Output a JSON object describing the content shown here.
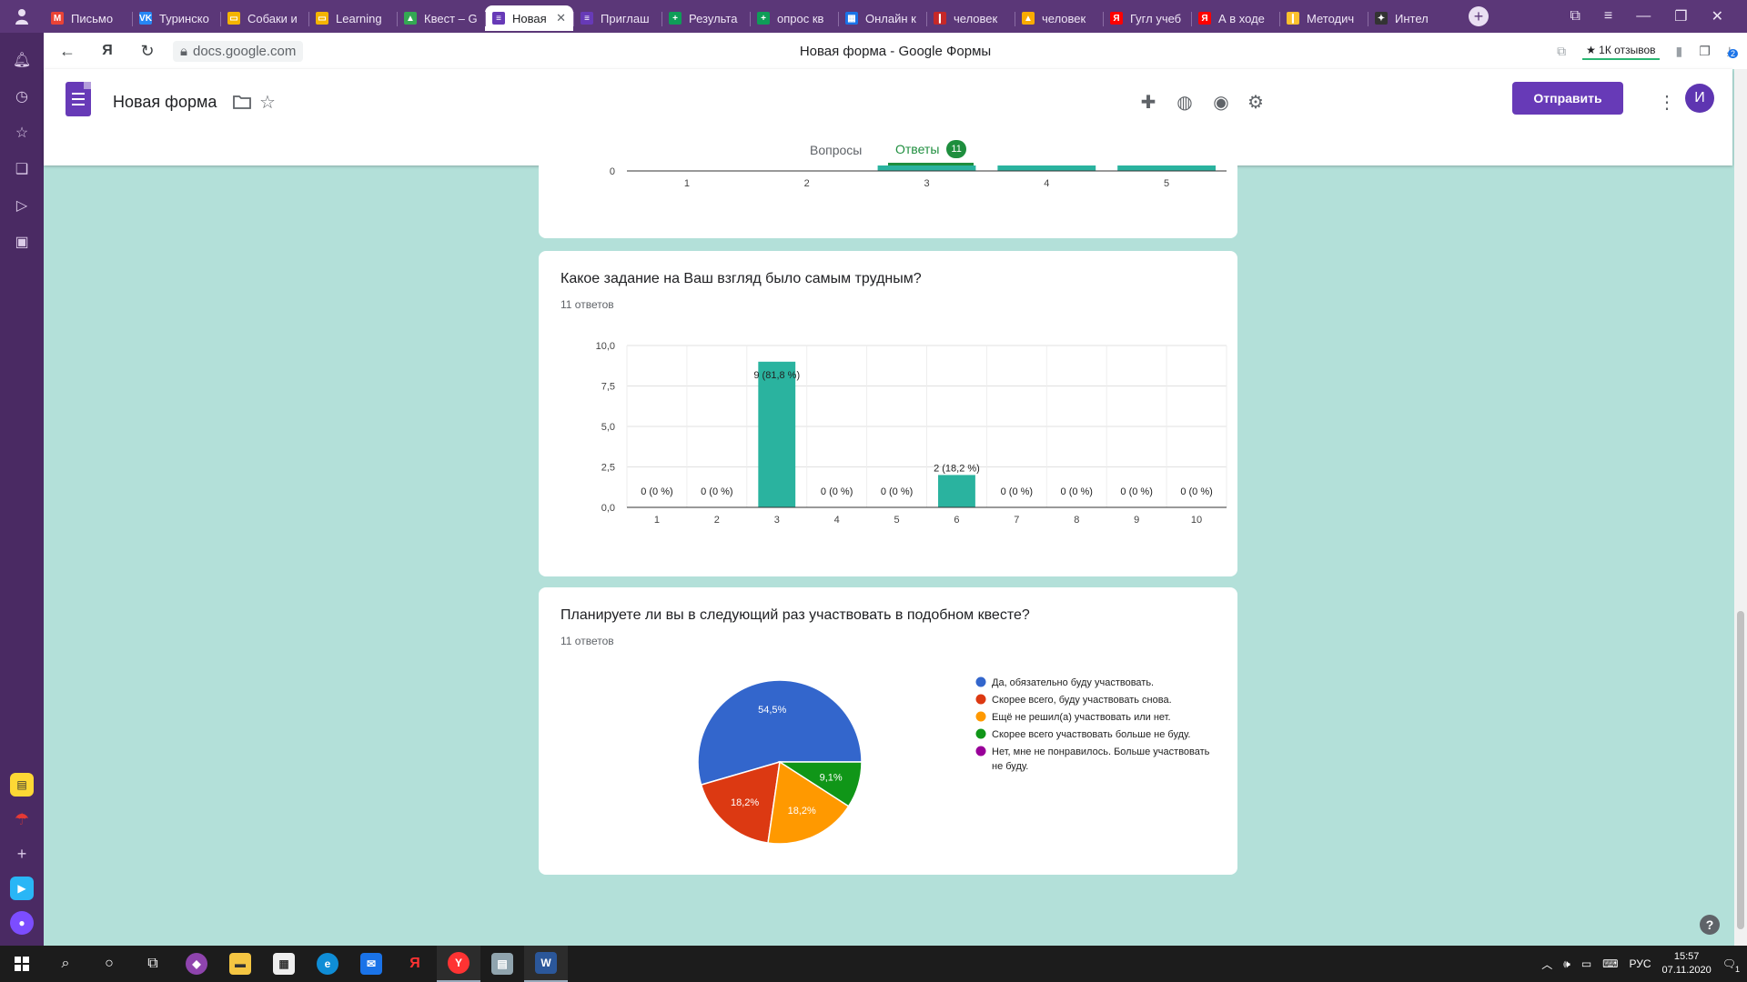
{
  "browser": {
    "tabs": [
      {
        "title": "Письмо",
        "icon": "gmail-icon",
        "color": "#ea4335",
        "glyph": "M"
      },
      {
        "title": "Туринско",
        "icon": "vk-icon",
        "color": "#2787f5",
        "glyph": "VK"
      },
      {
        "title": "Собаки и",
        "icon": "slides-icon",
        "color": "#f4b400",
        "glyph": "▭"
      },
      {
        "title": "Learning",
        "icon": "slides-icon",
        "color": "#f4b400",
        "glyph": "▭"
      },
      {
        "title": "Квест – G",
        "icon": "drive-icon",
        "color": "#34a853",
        "glyph": "▲"
      },
      {
        "title": "Новая",
        "icon": "forms-icon",
        "color": "#673ab7",
        "glyph": "≡",
        "active": true
      },
      {
        "title": "Приглаш",
        "icon": "forms-icon",
        "color": "#673ab7",
        "glyph": "≡"
      },
      {
        "title": "Результа",
        "icon": "sheets-plus-icon",
        "color": "#0f9d58",
        "glyph": "+"
      },
      {
        "title": "опрос кв",
        "icon": "sheets-plus-icon",
        "color": "#0f9d58",
        "glyph": "+"
      },
      {
        "title": "Онлайн к",
        "icon": "calendar-icon",
        "color": "#1a73e8",
        "glyph": "▦"
      },
      {
        "title": "человек",
        "icon": "red-icon",
        "color": "#c62828",
        "glyph": "❙"
      },
      {
        "title": "человек",
        "icon": "image-icon",
        "color": "#f9ab00",
        "glyph": "▲"
      },
      {
        "title": "Гугл учеб",
        "icon": "yandex-icon",
        "color": "#ff0000",
        "glyph": "Я"
      },
      {
        "title": "А в ходе",
        "icon": "yandex-icon",
        "color": "#ff0000",
        "glyph": "Я"
      },
      {
        "title": "Методич",
        "icon": "yellow-icon",
        "color": "#fbc02d",
        "glyph": "❙"
      },
      {
        "title": "Интел",
        "icon": "sparkle-icon",
        "color": "#333333",
        "glyph": "✦"
      }
    ],
    "address": "docs.google.com",
    "page_title": "Новая форма - Google Формы",
    "reviews_label": "★ 1К отзывов",
    "downloads_count": "2"
  },
  "form": {
    "name": "Новая форма",
    "send_label": "Отправить",
    "avatar_letter": "И",
    "tab_questions": "Вопросы",
    "tab_responses": "Ответы",
    "responses_count": "11"
  },
  "prev_chart": {
    "categories": [
      "1",
      "2",
      "3",
      "4",
      "5"
    ],
    "zero_label": "0",
    "values": [
      0,
      0,
      1,
      1,
      1
    ]
  },
  "chart_data": [
    {
      "type": "bar",
      "title": "Какое задание на Ваш взгляд было самым трудным?",
      "subtitle": "11 ответов",
      "categories": [
        "1",
        "2",
        "3",
        "4",
        "5",
        "6",
        "7",
        "8",
        "9",
        "10"
      ],
      "values": [
        0,
        0,
        9,
        0,
        0,
        2,
        0,
        0,
        0,
        0
      ],
      "data_labels": [
        "0 (0 %)",
        "0 (0 %)",
        "9 (81,8 %)",
        "0 (0 %)",
        "0 (0 %)",
        "2 (18,2 %)",
        "0 (0 %)",
        "0 (0 %)",
        "0 (0 %)",
        "0 (0 %)"
      ],
      "ylim": [
        0,
        10
      ],
      "yticks": [
        "0,0",
        "2,5",
        "5,0",
        "7,5",
        "10,0"
      ],
      "color": "#2ab39f"
    },
    {
      "type": "pie",
      "title": "Планируете ли вы в следующий раз участвовать в подобном квесте?",
      "subtitle": "11 ответов",
      "legend_position": "right",
      "slices": [
        {
          "label": "Да, обязательно буду участвовать.",
          "value": 54.5,
          "display": "54,5%",
          "color": "#3366cc"
        },
        {
          "label": "Скорее всего, буду участвовать снова.",
          "value": 18.2,
          "display": "18,2%",
          "color": "#dc3912"
        },
        {
          "label": "Ещё не решил(а) участвовать или нет.",
          "value": 18.2,
          "display": "18,2%",
          "color": "#ff9900"
        },
        {
          "label": "Скорее всего участвовать больше не буду.",
          "value": 9.1,
          "display": "9,1%",
          "color": "#109618"
        },
        {
          "label": "Нет, мне не понравилось. Больше участвовать не буду.",
          "value": 0,
          "display": "",
          "color": "#990099"
        }
      ]
    }
  ],
  "taskbar": {
    "lang": "РУС",
    "time": "15:57",
    "date": "07.11.2020",
    "notifications": "1"
  }
}
